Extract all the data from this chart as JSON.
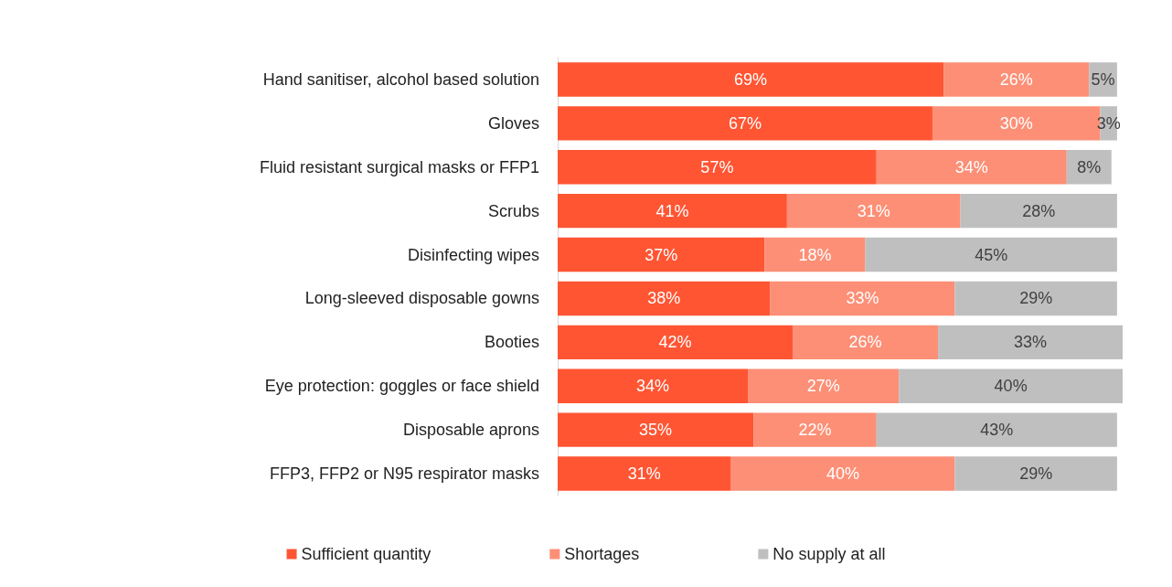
{
  "chart_data": {
    "type": "bar",
    "orientation": "horizontal",
    "stacked": true,
    "legend": "bottom",
    "categories": [
      "Hand sanitiser, alcohol based solution",
      "Gloves",
      "Fluid resistant surgical masks or FFP1",
      "Scrubs",
      "Disinfecting wipes",
      "Long-sleeved disposable gowns",
      "Booties",
      "Eye protection: goggles or face shield",
      "Disposable aprons",
      "FFP3, FFP2 or N95 respirator masks"
    ],
    "series": [
      {
        "name": "Sufficient quantity",
        "color": "#ff5533",
        "values": [
          69,
          67,
          57,
          41,
          37,
          38,
          42,
          34,
          35,
          31
        ],
        "value_labels": [
          "69%",
          "67%",
          "57%",
          "41%",
          "37%",
          "38%",
          "42%",
          "34%",
          "35%",
          "31%"
        ]
      },
      {
        "name": "Shortages",
        "color": "#fc8f76",
        "values": [
          26,
          30,
          34,
          31,
          18,
          33,
          26,
          27,
          22,
          40
        ],
        "value_labels": [
          "26%",
          "30%",
          "34%",
          "31%",
          "18%",
          "33%",
          "26%",
          "27%",
          "22%",
          "40%"
        ]
      },
      {
        "name": "No supply at all",
        "color": "#bfbfbf",
        "values": [
          5,
          3,
          8,
          28,
          45,
          29,
          33,
          40,
          43,
          29
        ],
        "value_labels": [
          "5%",
          "3%",
          "8%",
          "28%",
          "45%",
          "29%",
          "33%",
          "40%",
          "43%",
          "29%"
        ]
      }
    ]
  }
}
